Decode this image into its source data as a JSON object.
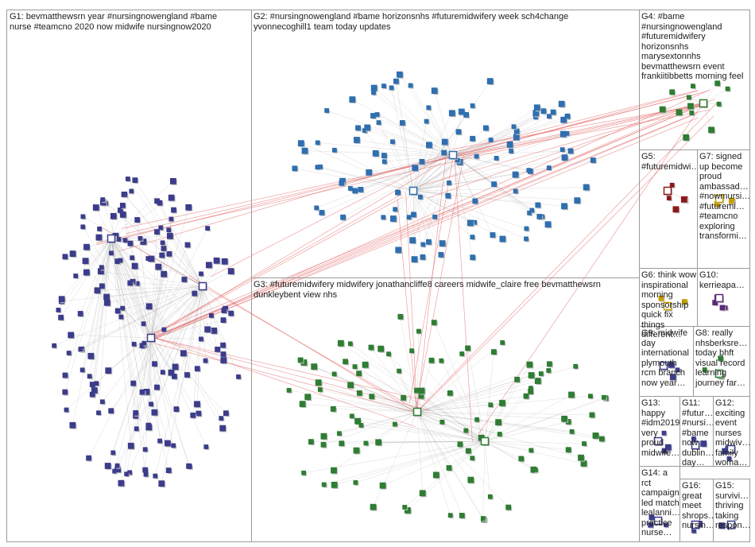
{
  "groups": [
    {
      "id": "G1",
      "label": "G1: bevmatthewsrn year #nursingnowengland #bame\nnurse #teamcno 2020 now midwife nursingnow2020",
      "color": "#3c3c8c"
    },
    {
      "id": "G2",
      "label": "G2: #nursingnowengland #bame horizonsnhs #futuremidwifery week sch4change\nyvonnecoghill1 team today updates",
      "color": "#2f6fb0"
    },
    {
      "id": "G3",
      "label": "G3: #futuremidwifery midwifery jonathancliffe8 careers midwife_claire free bevmatthewsrn\ndunkleybent view nhs",
      "color": "#2e7d32"
    },
    {
      "id": "G4",
      "label": "G4: #bame\n#nursingnowengland\n#futuremidwifery\nhorizonsnhs\nmarysextonnhs\nbevmatthewsrn event\nfrankiitibbetts morning feel",
      "color": "#2e7d32"
    },
    {
      "id": "G5",
      "label": "G5:\n#futuremidwi…",
      "color": "#8b1a1a"
    },
    {
      "id": "G7",
      "label": "G7: signed\nup become\nproud\nambassad…\n#nowmursi…\n#futuremi…\n#teamcno\nexploring\ntransformi…",
      "color": "#c8a000"
    },
    {
      "id": "G6",
      "label": "G6: think wow\ninspirational\nmorning\nsponsorship\nquick fix\nthings\ndifferent…",
      "color": "#c8a000"
    },
    {
      "id": "G10",
      "label": "G10:\nkerrieapa…",
      "color": "#5a2a7a"
    },
    {
      "id": "G9",
      "label": "G9: midwife\nday\ninternational\nplymouth\nrcm branch\nnow year…",
      "color": "#3c3c8c"
    },
    {
      "id": "G8",
      "label": "G8: really\nnhsberksre…\ntoday bhft\nvisual record\nlearning\njourney far…",
      "color": "#2e7d32"
    },
    {
      "id": "G13",
      "label": "G13:\nhappy\n#idm2019\nvery\nproud\nmidwife…",
      "color": "#3c3c8c"
    },
    {
      "id": "G11",
      "label": "G11:\n#futur…\n#nursi…\n#bame\nnow\ndublin…\nday…",
      "color": "#3c3c8c"
    },
    {
      "id": "G12",
      "label": "G12:\nexciting\nevent\nnurses\nmidwiv…\nfamily\nwoma…",
      "color": "#3c3c8c"
    },
    {
      "id": "G14",
      "label": "G14: a rct\ncampaign\nled match\nlealanni…\npractice\nnurse…",
      "color": "#3c3c8c"
    },
    {
      "id": "G16",
      "label": "G16:\ngreat\nmeet\nshrops…\nnursin…",
      "color": "#3c3c8c"
    },
    {
      "id": "G15",
      "label": "G15:\nsurvivi…\nthriving\ntaking\nrespon…",
      "color": "#3c3c8c"
    }
  ]
}
